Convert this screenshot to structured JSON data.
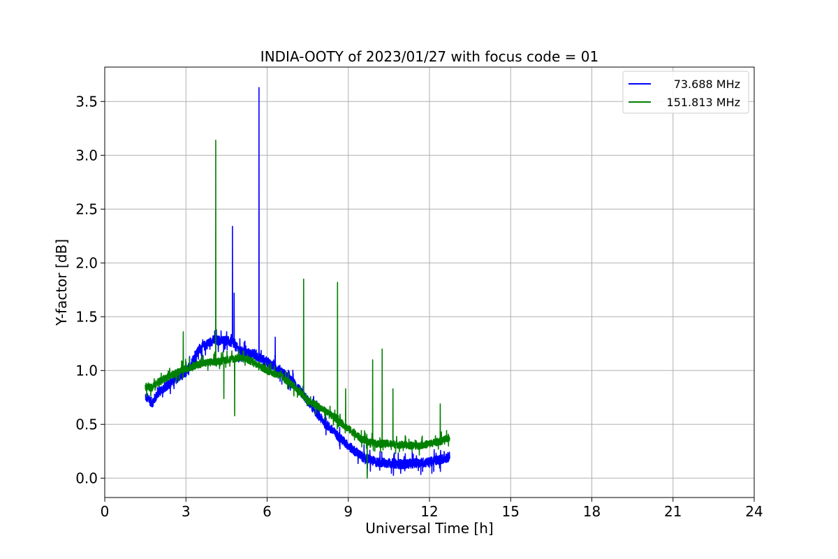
{
  "chart_data": {
    "type": "line",
    "title": "INDIA-OOTY of 2023/01/27 with focus code = 01",
    "xlabel": "Universal Time [h]",
    "ylabel": "Y-factor [dB]",
    "xlim": [
      0,
      24
    ],
    "ylim": [
      -0.18,
      3.82
    ],
    "xticks": [
      0,
      3,
      6,
      9,
      12,
      15,
      18,
      21,
      24
    ],
    "yticks": [
      0.0,
      0.5,
      1.0,
      1.5,
      2.0,
      2.5,
      3.0,
      3.5
    ],
    "xtick_labels": [
      "0",
      "3",
      "6",
      "9",
      "12",
      "15",
      "18",
      "21",
      "24"
    ],
    "ytick_labels": [
      "0.0",
      "0.5",
      "1.0",
      "1.5",
      "2.0",
      "2.5",
      "3.0",
      "3.5"
    ],
    "grid": true,
    "legend_position": "top-right",
    "series": [
      {
        "name": "73.688 MHz",
        "color": "#0000ff",
        "x": [
          1.5,
          1.75,
          2.0,
          2.5,
          3.0,
          3.5,
          4.0,
          4.5,
          4.75,
          5.0,
          5.5,
          6.0,
          6.5,
          7.0,
          7.5,
          8.0,
          8.5,
          9.0,
          9.5,
          10.0,
          10.5,
          11.0,
          11.5,
          12.0,
          12.5,
          12.75
        ],
        "values": [
          0.76,
          0.7,
          0.8,
          0.9,
          0.98,
          1.2,
          1.28,
          1.28,
          1.25,
          1.18,
          1.15,
          1.08,
          1.0,
          0.88,
          0.72,
          0.55,
          0.42,
          0.3,
          0.2,
          0.15,
          0.14,
          0.13,
          0.14,
          0.15,
          0.18,
          0.2
        ],
        "noise": 0.045,
        "spikes": [
          [
            4.72,
            2.34
          ],
          [
            4.78,
            1.72
          ],
          [
            5.7,
            3.63
          ],
          [
            6.3,
            1.31
          ],
          [
            9.7,
            0.02
          ],
          [
            10.6,
            0.14
          ]
        ]
      },
      {
        "name": "151.813 MHz",
        "color": "#008000",
        "x": [
          1.5,
          1.75,
          2.0,
          2.5,
          3.0,
          3.5,
          4.0,
          4.5,
          5.0,
          5.5,
          6.0,
          6.5,
          7.0,
          7.5,
          8.0,
          8.5,
          9.0,
          9.5,
          10.0,
          10.5,
          11.0,
          11.5,
          12.0,
          12.5,
          12.75
        ],
        "values": [
          0.85,
          0.84,
          0.9,
          0.96,
          1.02,
          1.06,
          1.08,
          1.1,
          1.12,
          1.08,
          1.0,
          0.95,
          0.85,
          0.72,
          0.65,
          0.56,
          0.46,
          0.36,
          0.32,
          0.32,
          0.31,
          0.3,
          0.32,
          0.35,
          0.38
        ],
        "noise": 0.035,
        "spikes": [
          [
            2.9,
            1.36
          ],
          [
            4.1,
            3.14
          ],
          [
            4.4,
            0.74
          ],
          [
            4.8,
            0.58
          ],
          [
            7.35,
            1.85
          ],
          [
            8.6,
            1.82
          ],
          [
            8.9,
            0.83
          ],
          [
            9.9,
            1.1
          ],
          [
            10.25,
            1.2
          ],
          [
            10.65,
            0.83
          ],
          [
            12.4,
            0.69
          ],
          [
            9.7,
            0.0
          ]
        ]
      }
    ]
  }
}
